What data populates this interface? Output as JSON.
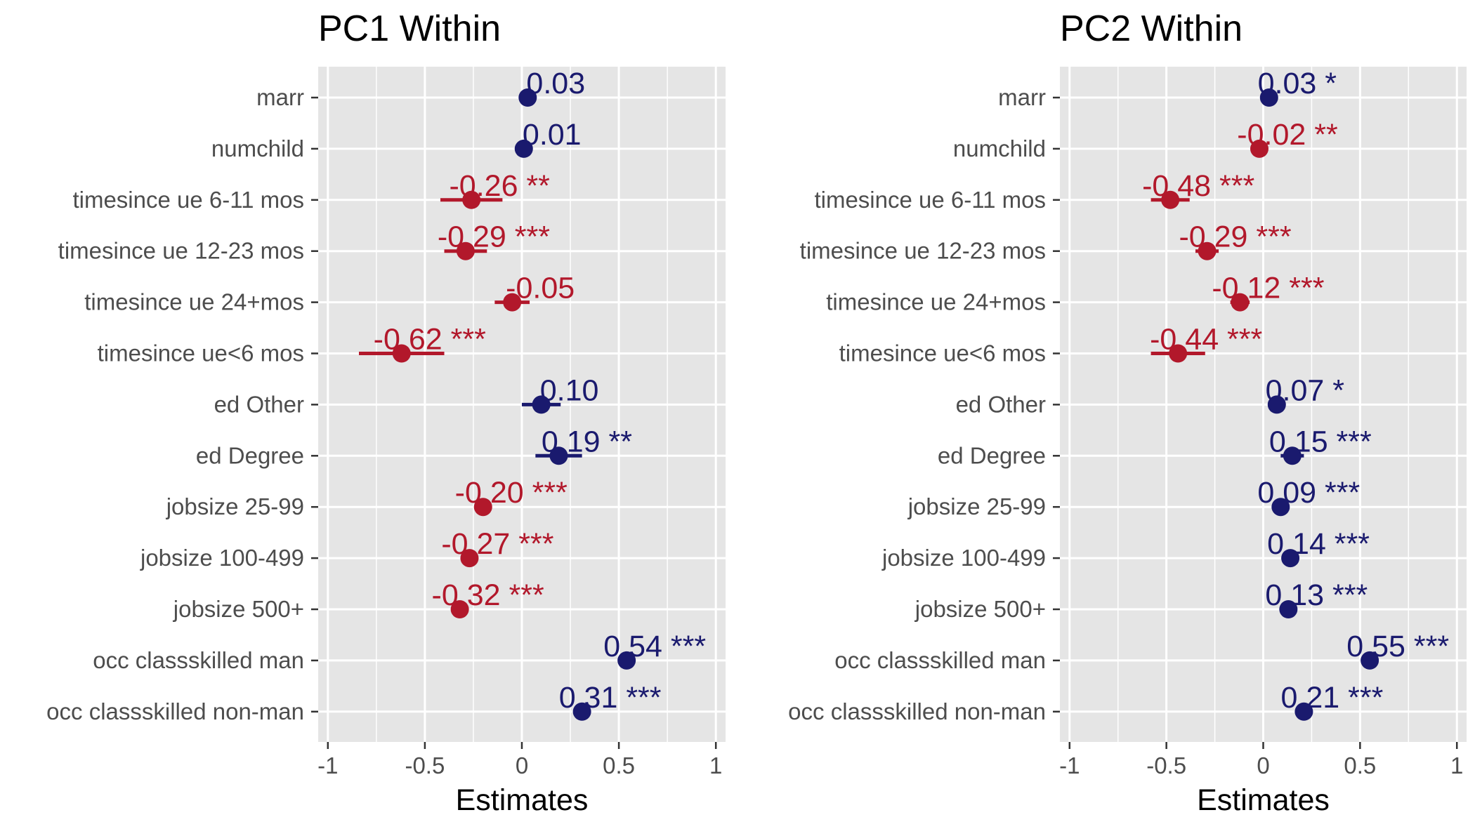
{
  "colors": {
    "positive": "#1a1a6e",
    "negative": "#b2182b",
    "panel_bg": "#e5e5e5",
    "grid": "#ffffff",
    "tick_text": "#4d4d4d"
  },
  "chart_data": [
    {
      "type": "scatter",
      "subtype": "coefficient-plot",
      "title": "PC1 Within",
      "xlabel": "Estimates",
      "ylabel": "",
      "xlim": [
        -1.05,
        1.05
      ],
      "xticks": [
        -1,
        -0.5,
        0,
        0.5,
        1
      ],
      "xtick_labels": [
        "-1",
        "-0.5",
        "0",
        "0.5",
        "1"
      ],
      "grid": true,
      "terms": [
        {
          "term": "marr",
          "estimate": 0.03,
          "ci_low": 0.03,
          "ci_high": 0.03,
          "label": "0.03"
        },
        {
          "term": "numchild",
          "estimate": 0.01,
          "ci_low": 0.01,
          "ci_high": 0.01,
          "label": "0.01"
        },
        {
          "term": "timesince ue 6-11 mos",
          "estimate": -0.26,
          "ci_low": -0.42,
          "ci_high": -0.1,
          "label": "-0.26 **"
        },
        {
          "term": "timesince ue 12-23 mos",
          "estimate": -0.29,
          "ci_low": -0.4,
          "ci_high": -0.18,
          "label": "-0.29 ***"
        },
        {
          "term": "timesince ue 24+mos",
          "estimate": -0.05,
          "ci_low": -0.14,
          "ci_high": 0.04,
          "label": "-0.05"
        },
        {
          "term": "timesince ue<6 mos",
          "estimate": -0.62,
          "ci_low": -0.84,
          "ci_high": -0.4,
          "label": "-0.62 ***"
        },
        {
          "term": "ed Other",
          "estimate": 0.1,
          "ci_low": 0.0,
          "ci_high": 0.2,
          "label": "0.10"
        },
        {
          "term": "ed Degree",
          "estimate": 0.19,
          "ci_low": 0.07,
          "ci_high": 0.31,
          "label": "0.19 **"
        },
        {
          "term": "jobsize 25-99",
          "estimate": -0.2,
          "ci_low": -0.2,
          "ci_high": -0.2,
          "label": "-0.20 ***"
        },
        {
          "term": "jobsize 100-499",
          "estimate": -0.27,
          "ci_low": -0.27,
          "ci_high": -0.27,
          "label": "-0.27 ***"
        },
        {
          "term": "jobsize 500+",
          "estimate": -0.32,
          "ci_low": -0.32,
          "ci_high": -0.32,
          "label": "-0.32 ***"
        },
        {
          "term": "occ classskilled man",
          "estimate": 0.54,
          "ci_low": 0.54,
          "ci_high": 0.54,
          "label": "0.54 ***"
        },
        {
          "term": "occ classskilled non-man",
          "estimate": 0.31,
          "ci_low": 0.31,
          "ci_high": 0.31,
          "label": "0.31 ***"
        }
      ]
    },
    {
      "type": "scatter",
      "subtype": "coefficient-plot",
      "title": "PC2 Within",
      "xlabel": "Estimates",
      "ylabel": "",
      "xlim": [
        -1.05,
        1.05
      ],
      "xticks": [
        -1,
        -0.5,
        0,
        0.5,
        1
      ],
      "xtick_labels": [
        "-1",
        "-0.5",
        "0",
        "0.5",
        "1"
      ],
      "grid": true,
      "terms": [
        {
          "term": "marr",
          "estimate": 0.03,
          "ci_low": 0.03,
          "ci_high": 0.03,
          "label": "0.03 *"
        },
        {
          "term": "numchild",
          "estimate": -0.02,
          "ci_low": -0.02,
          "ci_high": -0.02,
          "label": "-0.02 **"
        },
        {
          "term": "timesince ue 6-11 mos",
          "estimate": -0.48,
          "ci_low": -0.58,
          "ci_high": -0.38,
          "label": "-0.48 ***"
        },
        {
          "term": "timesince ue 12-23 mos",
          "estimate": -0.29,
          "ci_low": -0.35,
          "ci_high": -0.23,
          "label": "-0.29 ***"
        },
        {
          "term": "timesince ue 24+mos",
          "estimate": -0.12,
          "ci_low": -0.17,
          "ci_high": -0.07,
          "label": "-0.12 ***"
        },
        {
          "term": "timesince ue<6 mos",
          "estimate": -0.44,
          "ci_low": -0.58,
          "ci_high": -0.3,
          "label": "-0.44 ***"
        },
        {
          "term": "ed Other",
          "estimate": 0.07,
          "ci_low": 0.03,
          "ci_high": 0.11,
          "label": "0.07 *"
        },
        {
          "term": "ed Degree",
          "estimate": 0.15,
          "ci_low": 0.09,
          "ci_high": 0.21,
          "label": "0.15 ***"
        },
        {
          "term": "jobsize 25-99",
          "estimate": 0.09,
          "ci_low": 0.09,
          "ci_high": 0.09,
          "label": "0.09 ***"
        },
        {
          "term": "jobsize 100-499",
          "estimate": 0.14,
          "ci_low": 0.14,
          "ci_high": 0.14,
          "label": "0.14 ***"
        },
        {
          "term": "jobsize 500+",
          "estimate": 0.13,
          "ci_low": 0.13,
          "ci_high": 0.13,
          "label": "0.13 ***"
        },
        {
          "term": "occ classskilled man",
          "estimate": 0.55,
          "ci_low": 0.55,
          "ci_high": 0.55,
          "label": "0.55 ***"
        },
        {
          "term": "occ classskilled non-man",
          "estimate": 0.21,
          "ci_low": 0.21,
          "ci_high": 0.21,
          "label": "0.21 ***"
        }
      ]
    }
  ]
}
